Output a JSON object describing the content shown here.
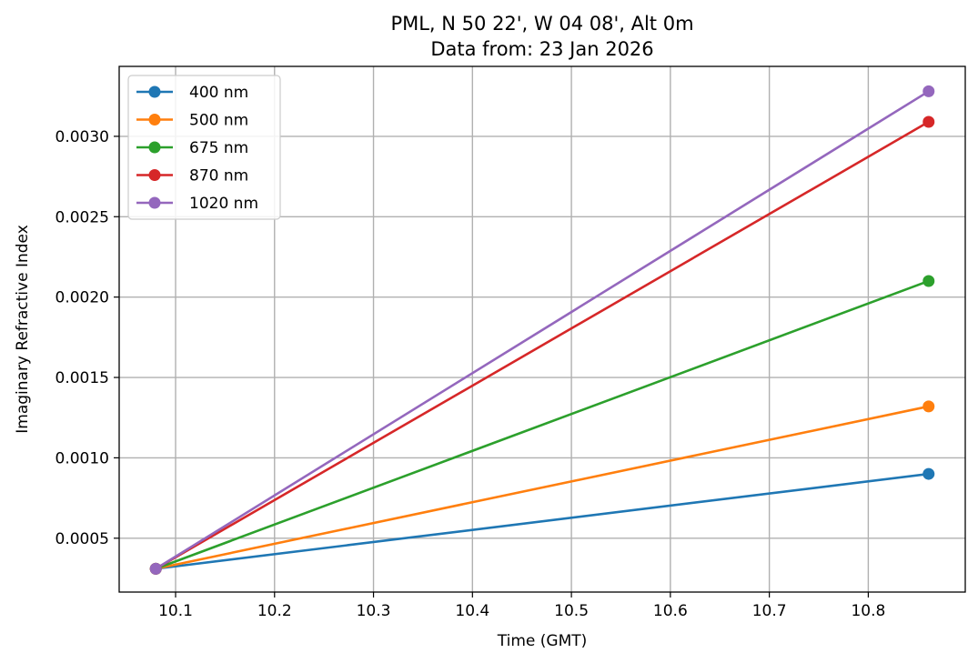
{
  "chart_data": {
    "type": "line",
    "title_line1": "PML, N 50 22', W 04 08', Alt 0m",
    "title_line2": "Data from: 23 Jan 2026",
    "xlabel": "Time (GMT)",
    "ylabel": "Imaginary Refractive Index",
    "xlim": [
      10.043,
      10.898
    ],
    "ylim": [
      0.000165,
      0.003435
    ],
    "xticks": [
      10.1,
      10.2,
      10.3,
      10.4,
      10.5,
      10.6,
      10.7,
      10.8
    ],
    "xtick_labels": [
      "10.1",
      "10.2",
      "10.3",
      "10.4",
      "10.5",
      "10.6",
      "10.7",
      "10.8"
    ],
    "yticks": [
      0.0005,
      0.001,
      0.0015,
      0.002,
      0.0025,
      0.003
    ],
    "ytick_labels": [
      "0.0005",
      "0.0010",
      "0.0015",
      "0.0020",
      "0.0025",
      "0.0030"
    ],
    "grid": true,
    "legend_position": "top-left",
    "x": [
      10.08,
      10.861
    ],
    "series": [
      {
        "name": "400 nm",
        "color": "#1f77b4",
        "values": [
          0.00031,
          0.0009
        ]
      },
      {
        "name": "500 nm",
        "color": "#ff7f0e",
        "values": [
          0.00031,
          0.00132
        ]
      },
      {
        "name": "675 nm",
        "color": "#2ca02c",
        "values": [
          0.00031,
          0.0021
        ]
      },
      {
        "name": "870 nm",
        "color": "#d62728",
        "values": [
          0.00031,
          0.00309
        ]
      },
      {
        "name": "1020 nm",
        "color": "#9467bd",
        "values": [
          0.00031,
          0.00328
        ]
      }
    ]
  }
}
